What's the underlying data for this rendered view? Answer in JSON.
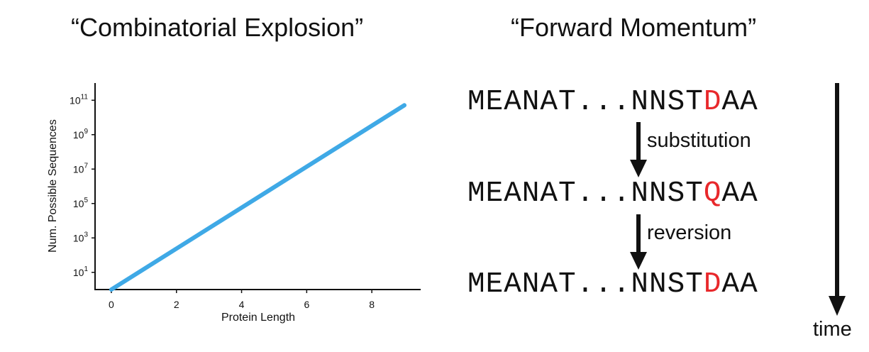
{
  "titles": {
    "left": "“Combinatorial Explosion”",
    "right": "“Forward Momentum”"
  },
  "chart_data": {
    "type": "line",
    "xlabel": "Protein Length",
    "ylabel": "Num. Possible Sequences",
    "x_ticks": [
      "0",
      "2",
      "4",
      "6",
      "8"
    ],
    "y_ticks": [
      {
        "base": "10",
        "exp": "1"
      },
      {
        "base": "10",
        "exp": "3"
      },
      {
        "base": "10",
        "exp": "5"
      },
      {
        "base": "10",
        "exp": "7"
      },
      {
        "base": "10",
        "exp": "9"
      },
      {
        "base": "10",
        "exp": "11"
      }
    ],
    "y_scale": "log",
    "xlim": [
      -0.5,
      9.5
    ],
    "ylim_exp": [
      0,
      12
    ],
    "series": [
      {
        "color": "#3fa9e6",
        "x": [
          0,
          9
        ],
        "y": [
          1,
          51200000000
        ]
      }
    ]
  },
  "sequences": [
    {
      "prefix": "MEANAT...NNST",
      "residue": "D",
      "suffix": "AA"
    },
    {
      "prefix": "MEANAT...NNST",
      "residue": "Q",
      "suffix": "AA"
    },
    {
      "prefix": "MEANAT...NNST",
      "residue": "D",
      "suffix": "AA"
    }
  ],
  "steps": {
    "first": "substitution",
    "second": "reversion"
  },
  "time_label": "time",
  "colors": {
    "highlight": "#e8282b",
    "line": "#3fa9e6",
    "text": "#111111"
  }
}
